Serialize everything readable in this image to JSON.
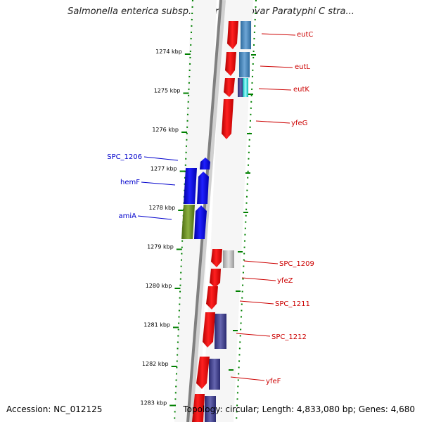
{
  "title": "Salmonella enterica subsp. enterica serovar Paratyphi C stra...",
  "accession": "Accession: NC_012125",
  "topology": "Topology: circular; Length: 4,833,080 bp; Genes: 4,680",
  "colors": {
    "forward_gene": "#ff0000",
    "reverse_gene": "#0000ff",
    "forward_label": "#cc0000",
    "reverse_label": "#0000cc",
    "backbone": "#808080",
    "ticks": "#008000",
    "cds_blue": "#4682b4",
    "cds_navy": "#3a3a8c",
    "cds_olive": "#6b8e23",
    "cds_gray": "#bbbbbb",
    "cds_cyan": "#00e5e5"
  },
  "scale_labels": [
    "1274 kbp",
    "1275 kbp",
    "1276 kbp",
    "1277 kbp",
    "1278 kbp",
    "1279 kbp",
    "1280 kbp",
    "1281 kbp",
    "1282 kbp",
    "1283 kbp"
  ],
  "forward_genes": [
    "eutC",
    "eutL",
    "eutK",
    "yfeG",
    "SPC_1209",
    "yfeZ",
    "SPC_1211",
    "SPC_1212",
    "yfeF"
  ],
  "reverse_genes": [
    "SPC_1206",
    "hemF",
    "amiA"
  ]
}
